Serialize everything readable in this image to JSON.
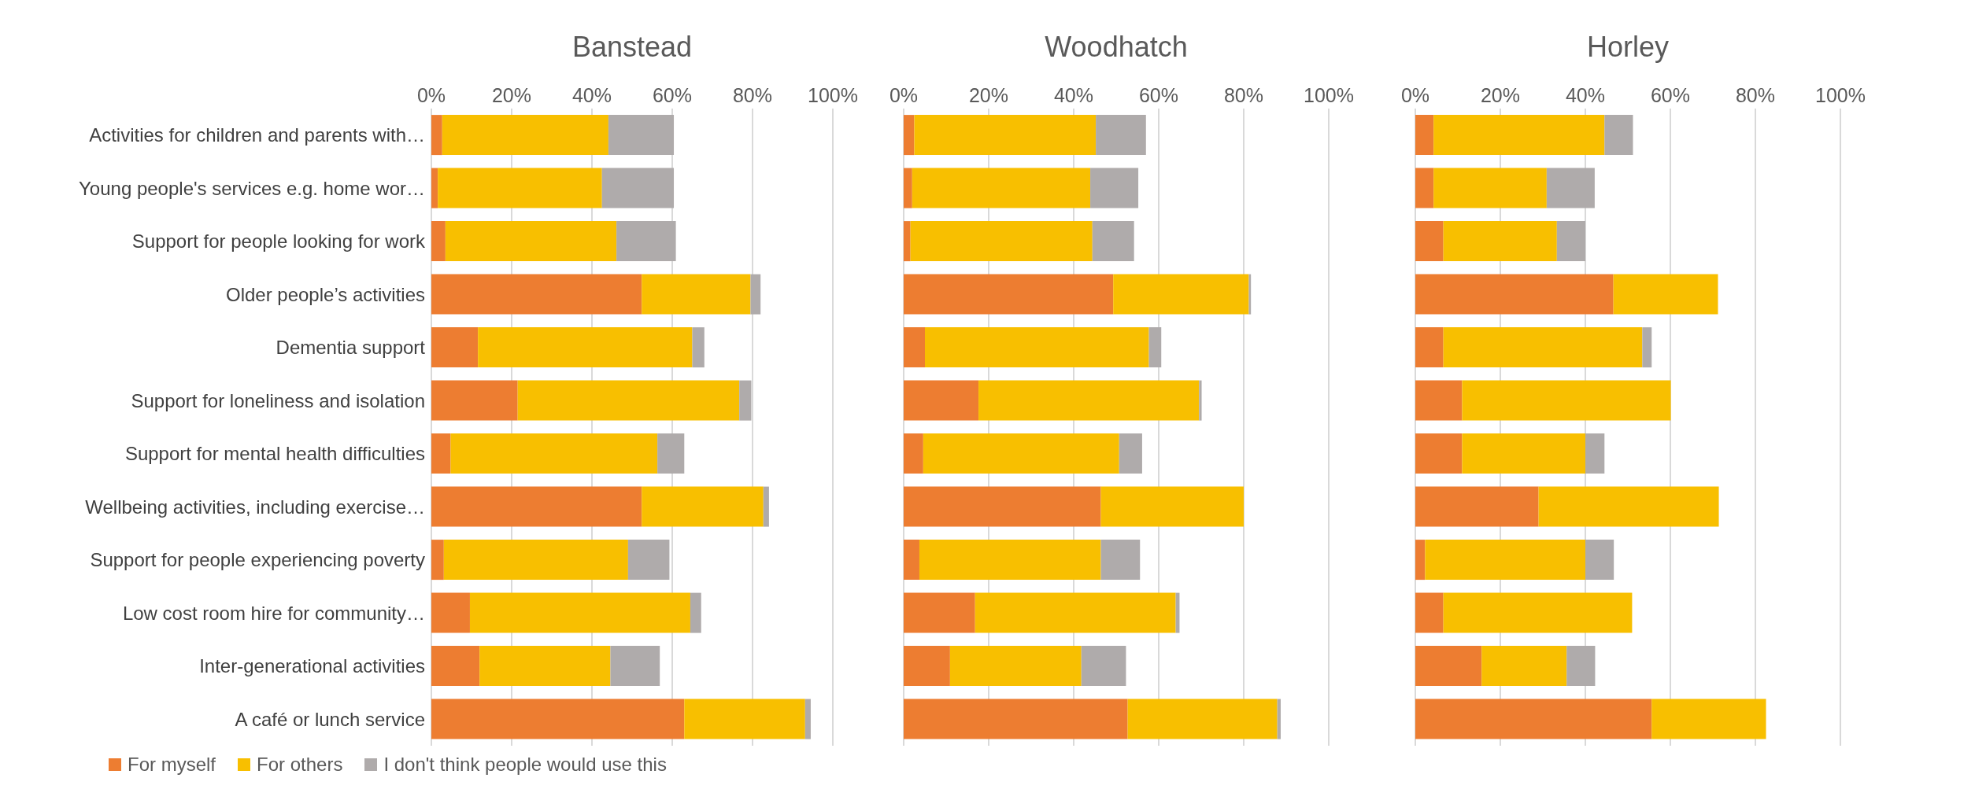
{
  "chart_data": [
    {
      "type": "bar",
      "title": "Banstead",
      "orientation": "horizontal",
      "stacked": true,
      "grid": "x",
      "legend": "bottom",
      "categories": [
        "Activities for children and parents with…",
        "Young people's services e.g. home wor…",
        "Support for people looking for work",
        "Older people’s activities",
        "Dementia support",
        "Support for loneliness and isolation",
        "Support for mental health difficulties",
        "Wellbeing activities, including exercise…",
        "Support for people experiencing poverty",
        "Low cost room hire for community…",
        "Inter-generational activities",
        "A café or lunch service"
      ],
      "xlim": [
        0,
        100
      ],
      "xticks": [
        {
          "value": 0,
          "label": "0%"
        },
        {
          "value": 20,
          "label": "20%"
        },
        {
          "value": 40,
          "label": "40%"
        },
        {
          "value": 60,
          "label": "60%"
        },
        {
          "value": 80,
          "label": "80%"
        },
        {
          "value": 100,
          "label": "100%"
        }
      ],
      "series": [
        {
          "name": "For myself",
          "color": "#ed7d31",
          "values": [
            2.7,
            1.6,
            3.5,
            52.4,
            11.6,
            21.5,
            4.8,
            52.4,
            3.1,
            9.6,
            12.0,
            63.0
          ]
        },
        {
          "name": "For others",
          "color": "#f8bf00",
          "values": [
            41.4,
            40.9,
            42.6,
            27.1,
            53.4,
            55.2,
            51.5,
            30.3,
            45.9,
            54.9,
            32.6,
            30.1
          ]
        },
        {
          "name": "I don't think people would use this",
          "color": "#afabab",
          "values": [
            16.3,
            17.9,
            14.8,
            2.5,
            3.0,
            3.0,
            6.7,
            1.4,
            10.3,
            2.7,
            12.3,
            1.4
          ]
        }
      ]
    },
    {
      "type": "bar",
      "title": "Woodhatch",
      "orientation": "horizontal",
      "stacked": true,
      "grid": "x",
      "tick_labels": "x",
      "categories": [
        null,
        null,
        null,
        null,
        null,
        null,
        null,
        null,
        null,
        null,
        null,
        null
      ],
      "xlim": [
        0,
        100
      ],
      "xticks": [
        {
          "value": 0,
          "label": "0%"
        },
        {
          "value": 20,
          "label": "20%"
        },
        {
          "value": 40,
          "label": "40%"
        },
        {
          "value": 60,
          "label": "60%"
        },
        {
          "value": 80,
          "label": "80%"
        },
        {
          "value": 100,
          "label": "100%"
        }
      ],
      "series": [
        {
          "color": "#ed7d31",
          "values": [
            2.5,
            2.0,
            1.6,
            49.3,
            5.0,
            17.6,
            4.6,
            46.4,
            3.7,
            16.8,
            10.9,
            52.7
          ]
        },
        {
          "color": "#f8bf00",
          "values": [
            42.7,
            41.9,
            42.8,
            31.9,
            52.7,
            51.9,
            46.1,
            33.6,
            42.7,
            47.2,
            30.9,
            35.2
          ]
        },
        {
          "color": "#afabab",
          "values": [
            11.8,
            11.3,
            9.8,
            0.5,
            2.9,
            0.6,
            5.4,
            0,
            9.2,
            0.9,
            10.5,
            0.8
          ]
        }
      ]
    },
    {
      "type": "bar",
      "title": "Horley",
      "orientation": "horizontal",
      "stacked": true,
      "grid": "x",
      "tick_labels": "x",
      "categories": [
        null,
        null,
        null,
        null,
        null,
        null,
        null,
        null,
        null,
        null,
        null,
        null
      ],
      "xlim": [
        0,
        100
      ],
      "xticks": [
        {
          "value": 0,
          "label": "0%"
        },
        {
          "value": 20,
          "label": "20%"
        },
        {
          "value": 40,
          "label": "40%"
        },
        {
          "value": 60,
          "label": "60%"
        },
        {
          "value": 80,
          "label": "80%"
        },
        {
          "value": 100,
          "label": "100%"
        }
      ],
      "series": [
        {
          "color": "#ed7d31",
          "values": [
            4.3,
            4.3,
            6.6,
            46.6,
            6.6,
            11.0,
            11.0,
            29.0,
            2.3,
            6.6,
            15.6,
            55.6
          ]
        },
        {
          "color": "#f8bf00",
          "values": [
            40.2,
            26.6,
            26.7,
            24.6,
            46.8,
            49.1,
            29.0,
            42.4,
            37.7,
            44.4,
            20.0,
            26.9
          ]
        },
        {
          "color": "#afabab",
          "values": [
            6.7,
            11.3,
            6.7,
            0,
            2.2,
            0,
            4.5,
            0,
            6.7,
            0,
            6.7,
            0
          ]
        }
      ]
    }
  ]
}
